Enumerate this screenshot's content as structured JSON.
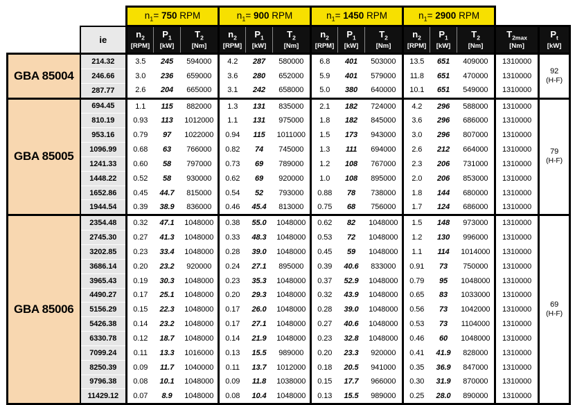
{
  "colors": {
    "header_yellow": "#F7E000",
    "model_peach": "#F8D7B0",
    "ie_gray": "#E6E6E6",
    "header_black": "#101010",
    "border_black": "#000000"
  },
  "table": {
    "ie_header": "ie",
    "speed_groups": [
      {
        "base": "n",
        "sub": "1",
        "eq": "=",
        "value": "750",
        "unit": "RPM"
      },
      {
        "base": "n",
        "sub": "1",
        "eq": "=",
        "value": "900",
        "unit": "RPM"
      },
      {
        "base": "n",
        "sub": "1",
        "eq": "=",
        "value": "1450",
        "unit": "RPM"
      },
      {
        "base": "n",
        "sub": "1",
        "eq": "=",
        "value": "2900",
        "unit": "RPM"
      }
    ],
    "sub_columns": [
      {
        "base": "n",
        "sub": "2",
        "unit": "[RPM]"
      },
      {
        "base": "P",
        "sub": "1",
        "unit": "[kW]"
      },
      {
        "base": "T",
        "sub": "2",
        "unit": "[Nm]"
      }
    ],
    "t2max_header": {
      "base": "T",
      "sub": "2max",
      "unit": "[Nm]"
    },
    "pt_header": {
      "base": "P",
      "sub": "t",
      "unit": "[kW]"
    },
    "sections": [
      {
        "model": "GBA 85004",
        "pt": {
          "value": "92",
          "note": "(H-F)"
        },
        "rows": [
          {
            "ie": "214.32",
            "groups": [
              [
                "3.5",
                "245",
                "594000"
              ],
              [
                "4.2",
                "287",
                "580000"
              ],
              [
                "6.8",
                "401",
                "503000"
              ],
              [
                "13.5",
                "651",
                "409000"
              ]
            ],
            "t2max": "1310000"
          },
          {
            "ie": "246.66",
            "groups": [
              [
                "3.0",
                "236",
                "659000"
              ],
              [
                "3.6",
                "280",
                "652000"
              ],
              [
                "5.9",
                "401",
                "579000"
              ],
              [
                "11.8",
                "651",
                "470000"
              ]
            ],
            "t2max": "1310000"
          },
          {
            "ie": "287.77",
            "groups": [
              [
                "2.6",
                "204",
                "665000"
              ],
              [
                "3.1",
                "242",
                "658000"
              ],
              [
                "5.0",
                "380",
                "640000"
              ],
              [
                "10.1",
                "651",
                "549000"
              ]
            ],
            "t2max": "1310000"
          }
        ]
      },
      {
        "model": "GBA 85005",
        "pt": {
          "value": "79",
          "note": "(H-F)"
        },
        "rows": [
          {
            "ie": "694.45",
            "groups": [
              [
                "1.1",
                "115",
                "882000"
              ],
              [
                "1.3",
                "131",
                "835000"
              ],
              [
                "2.1",
                "182",
                "724000"
              ],
              [
                "4.2",
                "296",
                "588000"
              ]
            ],
            "t2max": "1310000"
          },
          {
            "ie": "810.19",
            "groups": [
              [
                "0.93",
                "113",
                "1012000"
              ],
              [
                "1.1",
                "131",
                "975000"
              ],
              [
                "1.8",
                "182",
                "845000"
              ],
              [
                "3.6",
                "296",
                "686000"
              ]
            ],
            "t2max": "1310000"
          },
          {
            "ie": "953.16",
            "groups": [
              [
                "0.79",
                "97",
                "1022000"
              ],
              [
                "0.94",
                "115",
                "1011000"
              ],
              [
                "1.5",
                "173",
                "943000"
              ],
              [
                "3.0",
                "296",
                "807000"
              ]
            ],
            "t2max": "1310000"
          },
          {
            "ie": "1096.99",
            "groups": [
              [
                "0.68",
                "63",
                "766000"
              ],
              [
                "0.82",
                "74",
                "745000"
              ],
              [
                "1.3",
                "111",
                "694000"
              ],
              [
                "2.6",
                "212",
                "664000"
              ]
            ],
            "t2max": "1310000"
          },
          {
            "ie": "1241.33",
            "groups": [
              [
                "0.60",
                "58",
                "797000"
              ],
              [
                "0.73",
                "69",
                "789000"
              ],
              [
                "1.2",
                "108",
                "767000"
              ],
              [
                "2.3",
                "206",
                "731000"
              ]
            ],
            "t2max": "1310000"
          },
          {
            "ie": "1448.22",
            "groups": [
              [
                "0.52",
                "58",
                "930000"
              ],
              [
                "0.62",
                "69",
                "920000"
              ],
              [
                "1.0",
                "108",
                "895000"
              ],
              [
                "2.0",
                "206",
                "853000"
              ]
            ],
            "t2max": "1310000"
          },
          {
            "ie": "1652.86",
            "groups": [
              [
                "0.45",
                "44.7",
                "815000"
              ],
              [
                "0.54",
                "52",
                "793000"
              ],
              [
                "0.88",
                "78",
                "738000"
              ],
              [
                "1.8",
                "144",
                "680000"
              ]
            ],
            "t2max": "1310000"
          },
          {
            "ie": "1944.54",
            "groups": [
              [
                "0.39",
                "38.9",
                "836000"
              ],
              [
                "0.46",
                "45.4",
                "813000"
              ],
              [
                "0.75",
                "68",
                "756000"
              ],
              [
                "1.7",
                "124",
                "686000"
              ]
            ],
            "t2max": "1310000"
          }
        ]
      },
      {
        "model": "GBA 85006",
        "pt": {
          "value": "69",
          "note": "(H-F)"
        },
        "rows": [
          {
            "ie": "2354.48",
            "groups": [
              [
                "0.32",
                "47.1",
                "1048000"
              ],
              [
                "0.38",
                "55.0",
                "1048000"
              ],
              [
                "0.62",
                "82",
                "1048000"
              ],
              [
                "1.5",
                "148",
                "973000"
              ]
            ],
            "t2max": "1310000"
          },
          {
            "ie": "2745.30",
            "groups": [
              [
                "0.27",
                "41.3",
                "1048000"
              ],
              [
                "0.33",
                "48.3",
                "1048000"
              ],
              [
                "0.53",
                "72",
                "1048000"
              ],
              [
                "1.2",
                "130",
                "996000"
              ]
            ],
            "t2max": "1310000"
          },
          {
            "ie": "3202.85",
            "groups": [
              [
                "0.23",
                "33.4",
                "1048000"
              ],
              [
                "0.28",
                "39.0",
                "1048000"
              ],
              [
                "0.45",
                "59",
                "1048000"
              ],
              [
                "1.1",
                "114",
                "1014000"
              ]
            ],
            "t2max": "1310000"
          },
          {
            "ie": "3686.14",
            "groups": [
              [
                "0.20",
                "23.2",
                "920000"
              ],
              [
                "0.24",
                "27.1",
                "895000"
              ],
              [
                "0.39",
                "40.6",
                "833000"
              ],
              [
                "0.91",
                "73",
                "750000"
              ]
            ],
            "t2max": "1310000"
          },
          {
            "ie": "3965.43",
            "groups": [
              [
                "0.19",
                "30.3",
                "1048000"
              ],
              [
                "0.23",
                "35.3",
                "1048000"
              ],
              [
                "0.37",
                "52.9",
                "1048000"
              ],
              [
                "0.79",
                "95",
                "1048000"
              ]
            ],
            "t2max": "1310000"
          },
          {
            "ie": "4490.27",
            "groups": [
              [
                "0.17",
                "25.1",
                "1048000"
              ],
              [
                "0.20",
                "29.3",
                "1048000"
              ],
              [
                "0.32",
                "43.9",
                "1048000"
              ],
              [
                "0.65",
                "83",
                "1033000"
              ]
            ],
            "t2max": "1310000"
          },
          {
            "ie": "5156.29",
            "groups": [
              [
                "0.15",
                "22.3",
                "1048000"
              ],
              [
                "0.17",
                "26.0",
                "1048000"
              ],
              [
                "0.28",
                "39.0",
                "1048000"
              ],
              [
                "0.56",
                "73",
                "1042000"
              ]
            ],
            "t2max": "1310000"
          },
          {
            "ie": "5426.38",
            "groups": [
              [
                "0.14",
                "23.2",
                "1048000"
              ],
              [
                "0.17",
                "27.1",
                "1048000"
              ],
              [
                "0.27",
                "40.6",
                "1048000"
              ],
              [
                "0.53",
                "73",
                "1104000"
              ]
            ],
            "t2max": "1310000"
          },
          {
            "ie": "6330.78",
            "groups": [
              [
                "0.12",
                "18.7",
                "1048000"
              ],
              [
                "0.14",
                "21.9",
                "1048000"
              ],
              [
                "0.23",
                "32.8",
                "1048000"
              ],
              [
                "0.46",
                "60",
                "1048000"
              ]
            ],
            "t2max": "1310000"
          },
          {
            "ie": "7099.24",
            "groups": [
              [
                "0.11",
                "13.3",
                "1016000"
              ],
              [
                "0.13",
                "15.5",
                "989000"
              ],
              [
                "0.20",
                "23.3",
                "920000"
              ],
              [
                "0.41",
                "41.9",
                "828000"
              ]
            ],
            "t2max": "1310000"
          },
          {
            "ie": "8250.39",
            "groups": [
              [
                "0.09",
                "11.7",
                "1040000"
              ],
              [
                "0.11",
                "13.7",
                "1012000"
              ],
              [
                "0.18",
                "20.5",
                "941000"
              ],
              [
                "0.35",
                "36.9",
                "847000"
              ]
            ],
            "t2max": "1310000"
          },
          {
            "ie": "9796.38",
            "groups": [
              [
                "0.08",
                "10.1",
                "1048000"
              ],
              [
                "0.09",
                "11.8",
                "1038000"
              ],
              [
                "0.15",
                "17.7",
                "966000"
              ],
              [
                "0.30",
                "31.9",
                "870000"
              ]
            ],
            "t2max": "1310000"
          },
          {
            "ie": "11429.12",
            "groups": [
              [
                "0.07",
                "8.9",
                "1048000"
              ],
              [
                "0.08",
                "10.4",
                "1048000"
              ],
              [
                "0.13",
                "15.5",
                "989000"
              ],
              [
                "0.25",
                "28.0",
                "890000"
              ]
            ],
            "t2max": "1310000"
          }
        ]
      }
    ]
  }
}
